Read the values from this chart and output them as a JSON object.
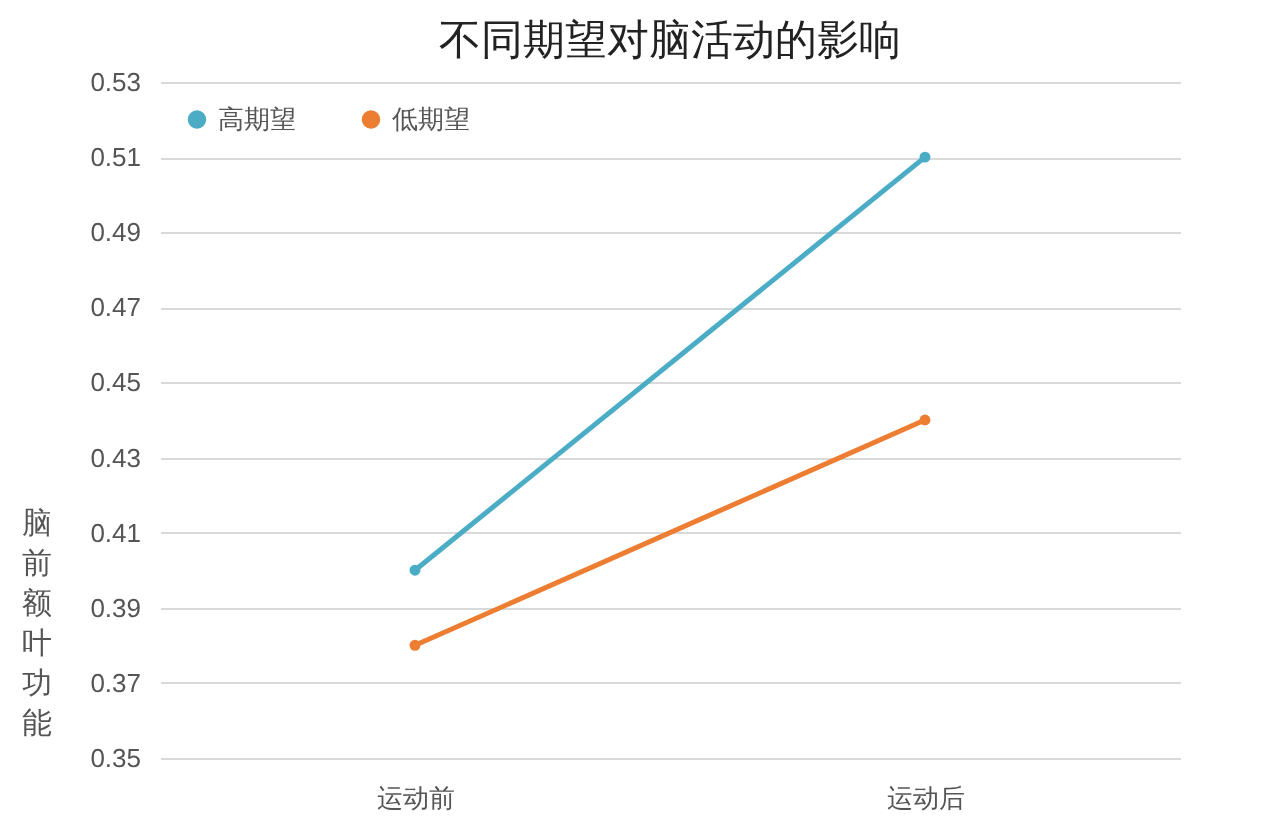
{
  "chart_data": {
    "type": "line",
    "title": "不同期望对脑活动的影响",
    "ylabel": "脑前额叶功能",
    "categories": [
      "运动前",
      "运动后"
    ],
    "series": [
      {
        "name": "高期望",
        "color": "#4bacc6",
        "values": [
          0.4,
          0.51
        ]
      },
      {
        "name": "低期望",
        "color": "#ed7d31",
        "values": [
          0.38,
          0.44
        ]
      }
    ],
    "ylim": [
      0.35,
      0.53
    ],
    "yticks": [
      0.35,
      0.37,
      0.39,
      0.41,
      0.43,
      0.45,
      0.47,
      0.49,
      0.51,
      0.53
    ],
    "grid": "y",
    "legend": "top left",
    "marker": "circle",
    "line_style": "solid"
  }
}
